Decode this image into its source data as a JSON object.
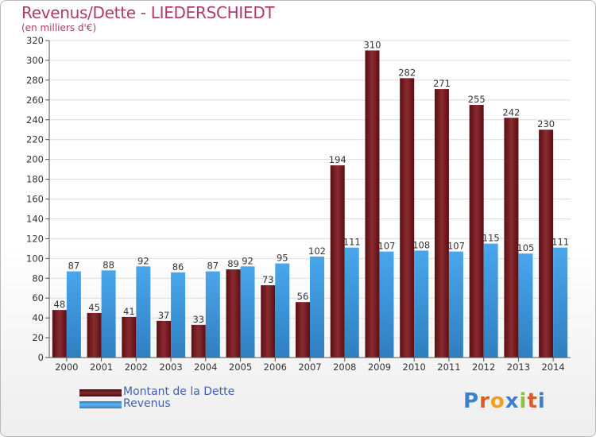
{
  "title": "Revenus/Dette - LIEDERSCHIEDT",
  "subtitle": "(en milliers d'€)",
  "legend": [
    {
      "label": "Montant de la Dette",
      "color": "#6e1a1e"
    },
    {
      "label": "Revenus",
      "color": "#3d96d9"
    }
  ],
  "logo": {
    "text": "Proxiti",
    "colors": [
      "#3d7fc8",
      "#e05a2b",
      "#f0a020",
      "#3d7fc8",
      "#8cbf3f",
      "#e05a2b",
      "#3d7fc8"
    ]
  },
  "chart_data": {
    "type": "bar",
    "categories": [
      "2000",
      "2001",
      "2002",
      "2003",
      "2004",
      "2005",
      "2006",
      "2007",
      "2008",
      "2009",
      "2010",
      "2011",
      "2012",
      "2013",
      "2014"
    ],
    "series": [
      {
        "name": "Montant de la Dette",
        "color": "#6e1a1e",
        "values": [
          48,
          45,
          41,
          37,
          33,
          89,
          73,
          56,
          194,
          310,
          282,
          271,
          255,
          242,
          230
        ]
      },
      {
        "name": "Revenus",
        "color": "#3d96d9",
        "values": [
          87,
          88,
          92,
          86,
          87,
          92,
          95,
          102,
          111,
          107,
          108,
          107,
          115,
          105,
          111
        ]
      }
    ],
    "ylim": [
      0,
      320
    ],
    "yticks": [
      0,
      20,
      40,
      60,
      80,
      100,
      120,
      140,
      160,
      180,
      200,
      220,
      240,
      260,
      280,
      300,
      320
    ],
    "grid": true
  }
}
